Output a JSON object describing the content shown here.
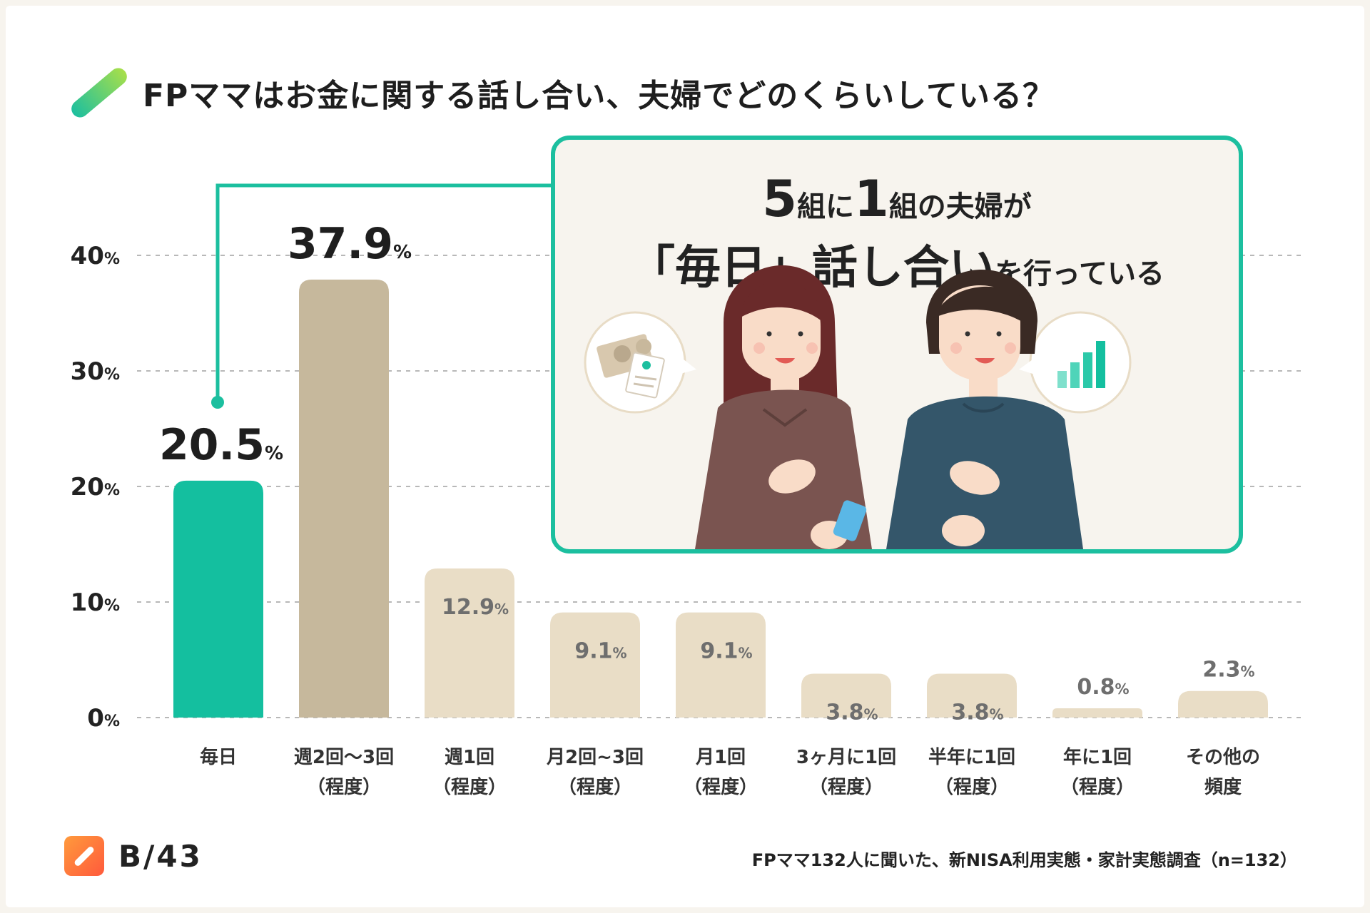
{
  "title": "FPママはお金に関する話し合い、夫婦でどのくらいしている？",
  "chart_data": {
    "type": "bar",
    "categories": [
      [
        "毎日"
      ],
      [
        "週2回〜3回",
        "（程度）"
      ],
      [
        "週1回",
        "（程度）"
      ],
      [
        "月2回~3回",
        "（程度）"
      ],
      [
        "月1回",
        "（程度）"
      ],
      [
        "3ヶ月に1回",
        "（程度）"
      ],
      [
        "半年に1回",
        "（程度）"
      ],
      [
        "年に1回",
        "（程度）"
      ],
      [
        "その他の",
        "頻度"
      ]
    ],
    "values": [
      20.5,
      37.9,
      12.9,
      9.1,
      9.1,
      3.8,
      3.8,
      0.8,
      2.3
    ],
    "value_labels": [
      "20.5",
      "37.9",
      "12.9",
      "9.1",
      "9.1",
      "3.8",
      "3.8",
      "0.8",
      "2.3"
    ],
    "unit": "%",
    "ylim": [
      0,
      40
    ],
    "yticks": [
      0,
      10,
      20,
      30,
      40
    ],
    "ytick_labels": [
      "0",
      "10",
      "20",
      "30",
      "40"
    ],
    "grid": "dashed-horizontal",
    "colors": {
      "highlight": "#14bf9f",
      "second": "#c6b89c",
      "rest": "#e9ddc6",
      "callout": "#1cbf9f"
    }
  },
  "callout": {
    "line1": [
      "5",
      "組に",
      "1",
      "組の夫婦が"
    ],
    "line2": [
      "「毎日」話し合い",
      "を行っている"
    ]
  },
  "brand": {
    "name": "B/43"
  },
  "source": "FPママ132人に聞いた、新NISA利用実態・家計実態調査（n=132）"
}
